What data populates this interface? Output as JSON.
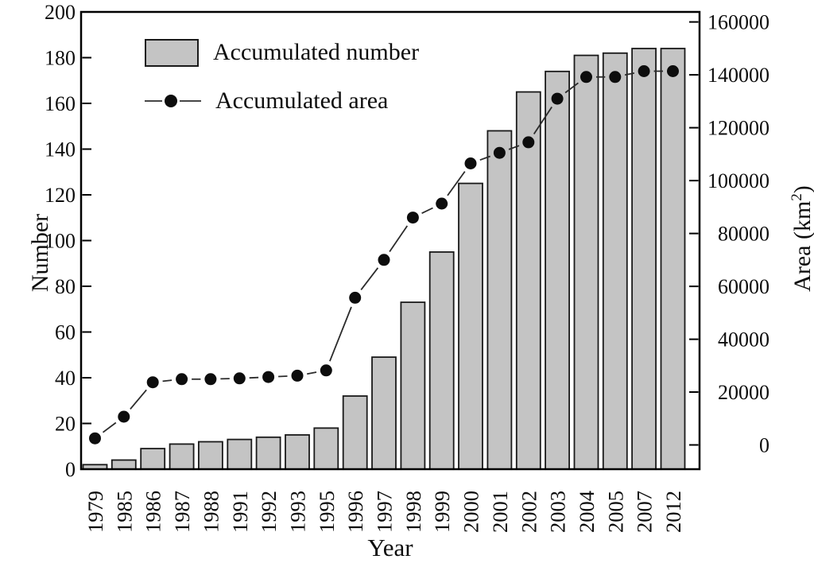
{
  "page": {
    "background": "#ffffff"
  },
  "chart_data": {
    "type": "bar+line",
    "title": "",
    "xlabel": "Year",
    "ylabel_left": "Number",
    "ylabel_right": {
      "prefix": "Area (km",
      "sup": "2",
      "suffix": ")"
    },
    "categories": [
      "1979",
      "1985",
      "1986",
      "1987",
      "1988",
      "1991",
      "1992",
      "1993",
      "1995",
      "1996",
      "1997",
      "1998",
      "1999",
      "2000",
      "2001",
      "2002",
      "2003",
      "2004",
      "2005",
      "2007",
      "2012"
    ],
    "series": [
      {
        "name": "Accumulated number",
        "type": "bar",
        "axis": "left",
        "color": "#c4c4c4",
        "edge_color": "#1a1a1a",
        "values": [
          2,
          4,
          9,
          11,
          12,
          13,
          14,
          15,
          18,
          32,
          49,
          73,
          95,
          125,
          148,
          165,
          174,
          181,
          182,
          184,
          184
        ]
      },
      {
        "name": "Accumulated area",
        "type": "line",
        "marker": "filled-circle",
        "axis": "right",
        "color": "#2b2b2b",
        "marker_color": "#0d0d0d",
        "values": [
          2500,
          10700,
          23700,
          24900,
          24900,
          25200,
          25700,
          26200,
          28200,
          55700,
          70000,
          86000,
          91300,
          106500,
          110500,
          114500,
          131000,
          139200,
          139200,
          141400,
          141400
        ]
      }
    ],
    "left_axis": {
      "min": 0,
      "max": 200,
      "tick_step": 20,
      "ticks": [
        0,
        20,
        40,
        60,
        80,
        100,
        120,
        140,
        160,
        180,
        200
      ]
    },
    "right_axis": {
      "min": 0,
      "max": 160000,
      "tick_step": 20000,
      "ticks": [
        0,
        20000,
        40000,
        60000,
        80000,
        100000,
        120000,
        140000,
        160000
      ],
      "zero_offset_frac": 0.053,
      "span_frac": 0.925
    },
    "legend": {
      "position": "top-left-inside"
    },
    "grid": false
  }
}
